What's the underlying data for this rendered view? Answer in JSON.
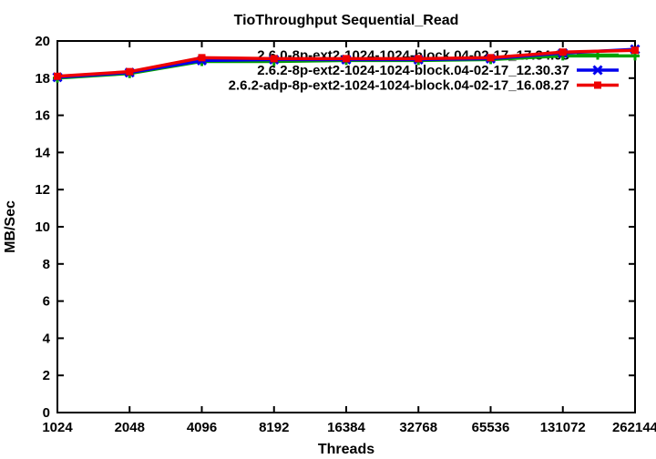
{
  "page": {
    "background": "#ffffff",
    "axis_color": "#000000"
  },
  "chart_data": {
    "type": "line",
    "title": "TioThroughput Sequential_Read",
    "xlabel": "Threads",
    "ylabel": "MB/Sec",
    "x_scale": "log2-category",
    "categories": [
      "1024",
      "2048",
      "4096",
      "8192",
      "16384",
      "32768",
      "65536",
      "131072",
      "262144"
    ],
    "ylim": [
      0,
      20
    ],
    "yticks": [
      0,
      2,
      4,
      6,
      8,
      10,
      12,
      14,
      16,
      18,
      20
    ],
    "grid": false,
    "legend_position": "top-right-inside",
    "series": [
      {
        "name": "2.6.0-8p-ext2-1024-1024-block.04-02-17_17.34.08",
        "color": "#00A000",
        "marker": "plus",
        "values": [
          18.0,
          18.25,
          18.9,
          18.9,
          18.95,
          18.95,
          19.0,
          19.2,
          19.2
        ]
      },
      {
        "name": "2.6.2-8p-ext2-1024-1024-block.04-02-17_12.30.37",
        "color": "#0000EE",
        "marker": "cross",
        "values": [
          18.05,
          18.3,
          18.95,
          19.0,
          19.0,
          19.0,
          19.05,
          19.35,
          19.55
        ]
      },
      {
        "name": "2.6.2-adp-8p-ext2-1024-1024-block.04-02-17_16.08.27",
        "color": "#EE0000",
        "marker": "square",
        "values": [
          18.1,
          18.35,
          19.1,
          19.05,
          19.05,
          19.05,
          19.1,
          19.4,
          19.5
        ]
      }
    ]
  }
}
